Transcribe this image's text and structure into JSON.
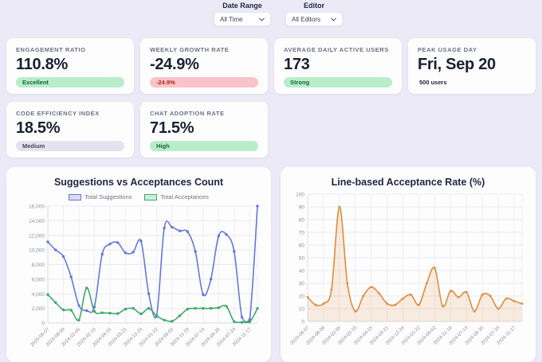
{
  "filters": {
    "date_range": {
      "label": "Date Range",
      "value": "All Time"
    },
    "editor": {
      "label": "Editor",
      "value": "All Editors"
    }
  },
  "kpis": [
    {
      "label": "ENGAGEMENT RATIO",
      "value": "110.8%",
      "badge": "Excellent",
      "badge_type": "green"
    },
    {
      "label": "WEEKLY GROWTH RATE",
      "value": "-24.9%",
      "badge": "-24.9%",
      "badge_type": "red"
    },
    {
      "label": "AVERAGE DAILY ACTIVE USERS",
      "value": "173",
      "badge": "Strong",
      "badge_type": "green"
    },
    {
      "label": "PEAK USAGE DAY",
      "value": "Fri, Sep 20",
      "badge": "500 users",
      "badge_type": "plain"
    },
    {
      "label": "CODE EFFICIENCY INDEX",
      "value": "18.5%",
      "badge": "Medium",
      "badge_type": "gray"
    },
    {
      "label": "CHAT ADOPTION RATE",
      "value": "71.5%",
      "badge": "High",
      "badge_type": "green"
    }
  ],
  "colors": {
    "background": "#eceaf6",
    "card": "#fdfdfe",
    "badge_green_bg": "#b9edc9",
    "badge_green_text": "#15633a",
    "badge_red_bg": "#f8c3c9",
    "badge_red_text": "#b42318",
    "badge_gray_bg": "#e4e3ed",
    "badge_gray_text": "#3f4754",
    "suggestions_line": "#6678d8",
    "acceptances_line": "#3fa968",
    "acceptance_rate_line": "#e08c3e"
  },
  "chart_data": [
    {
      "type": "line",
      "title": "Suggestions vs Acceptances Count",
      "categories": [
        "2025-06-07",
        "2024-08-09",
        "2024-02-05",
        "2024-02-10",
        "2024-04-15",
        "2024-03-21",
        "2024-12-24",
        "2024-01-22",
        "2024-09-02",
        "2024-11-19",
        "2024-07-14",
        "2024-09-20",
        "2024-07-24",
        "2024-11-17"
      ],
      "ylim": [
        0,
        16000
      ],
      "ytick_step": 2000,
      "y_format": "thousands",
      "grid": true,
      "legend_position": "top",
      "series": [
        {
          "name": "Total Suggestions",
          "color": "#6678d8",
          "swatch_fill": "#d6dbf6",
          "values": [
            11100,
            10000,
            9100,
            6300,
            2400,
            1700,
            2200,
            9400,
            10800,
            11000,
            9600,
            9700,
            11200,
            4000,
            900,
            13000,
            13100,
            12600,
            12500,
            9800,
            3900,
            6000,
            11900,
            12100,
            9800,
            800,
            500,
            16000
          ]
        },
        {
          "name": "Total Acceptances",
          "color": "#3fa968",
          "swatch_fill": "#cdeeda",
          "values": [
            3900,
            2800,
            1800,
            1750,
            400,
            4800,
            1600,
            1400,
            1350,
            1300,
            1900,
            2000,
            1250,
            2000,
            1000,
            400,
            250,
            1000,
            1900,
            2000,
            2000,
            2000,
            2100,
            2300,
            200,
            100,
            150,
            2000
          ]
        }
      ]
    },
    {
      "type": "area",
      "title": "Line-based Acceptance Rate (%)",
      "categories": [
        "2025-06-07",
        "2024-08-09",
        "2024-02-05",
        "2024-02-10",
        "2024-04-15",
        "2024-03-21",
        "2024-12-24",
        "2024-01-22",
        "2024-09-02",
        "2024-11-19",
        "2024-07-14",
        "2024-09-20",
        "2024-07-24",
        "2024-11-17"
      ],
      "ylim": [
        0,
        100
      ],
      "ytick_step": 10,
      "y_format": "plain",
      "grid": true,
      "legend_position": "none",
      "series": [
        {
          "name": "Acceptance Rate",
          "color": "#e08c3e",
          "fill": "rgba(224,140,62,0.16)",
          "values": [
            19,
            13,
            14,
            25,
            90,
            30,
            8,
            20,
            27,
            22,
            14,
            13,
            18,
            21,
            13,
            30,
            42,
            12,
            24,
            19,
            23,
            8,
            21,
            20,
            10,
            18,
            16,
            14
          ]
        }
      ]
    }
  ]
}
